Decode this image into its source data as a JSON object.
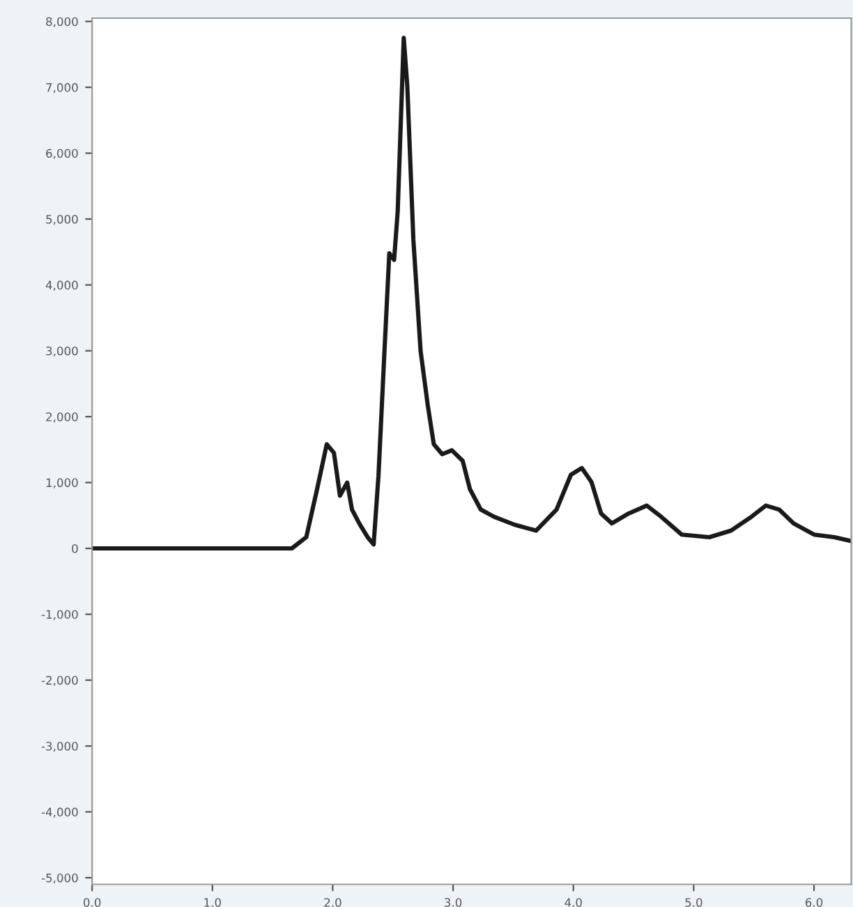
{
  "chart_data": {
    "type": "line",
    "x": [
      0,
      1.66,
      1.78,
      1.87,
      1.95,
      2.01,
      2.06,
      2.12,
      2.16,
      2.22,
      2.29,
      2.34,
      2.38,
      2.43,
      2.47,
      2.51,
      2.54,
      2.59,
      2.62,
      2.67,
      2.73,
      2.79,
      2.84,
      2.91,
      2.99,
      3.08,
      3.14,
      3.23,
      3.34,
      3.51,
      3.69,
      3.86,
      3.98,
      4.07,
      4.15,
      4.23,
      4.32,
      4.46,
      4.61,
      4.73,
      4.9,
      5.13,
      5.31,
      5.48,
      5.6,
      5.71,
      5.83,
      6.0,
      6.17,
      6.31
    ],
    "series": [
      {
        "color": "#1a1a1a",
        "values": [
          0,
          0,
          170,
          900,
          1580,
          1450,
          800,
          1000,
          590,
          380,
          170,
          60,
          1100,
          3000,
          4480,
          4380,
          5120,
          7750,
          7010,
          4690,
          3000,
          2170,
          1580,
          1430,
          1490,
          1330,
          900,
          590,
          480,
          360,
          270,
          590,
          1120,
          1220,
          1010,
          530,
          380,
          530,
          650,
          480,
          210,
          170,
          270,
          480,
          650,
          590,
          380,
          210,
          170,
          110
        ]
      }
    ],
    "xlim": [
      0,
      6.31
    ],
    "ylim": [
      -5100,
      8050
    ],
    "xticks": [
      {
        "value": 0,
        "label": "0.0"
      },
      {
        "value": 1,
        "label": "1.0"
      },
      {
        "value": 2,
        "label": "2.0"
      },
      {
        "value": 3,
        "label": "3.0"
      },
      {
        "value": 4,
        "label": "4.0"
      },
      {
        "value": 5,
        "label": "5.0"
      },
      {
        "value": 6,
        "label": "6.0"
      }
    ],
    "yticks": [
      {
        "value": 8000,
        "label": "8,000"
      },
      {
        "value": 7000,
        "label": "7,000"
      },
      {
        "value": 6000,
        "label": "6,000"
      },
      {
        "value": 5000,
        "label": "5,000"
      },
      {
        "value": 4000,
        "label": "4,000"
      },
      {
        "value": 3000,
        "label": "3,000"
      },
      {
        "value": 2000,
        "label": "2,000"
      },
      {
        "value": 1000,
        "label": "1,000"
      },
      0,
      {
        "value": -1000,
        "label": "-1,000"
      },
      {
        "value": -2000,
        "label": "-2,000"
      },
      {
        "value": -3000,
        "label": "-3,000"
      },
      {
        "value": -4000,
        "label": "-4,000"
      },
      {
        "value": -5000,
        "label": "-5,000"
      }
    ],
    "grid": false,
    "legend": false,
    "marker": "none",
    "line_style": "solid"
  }
}
